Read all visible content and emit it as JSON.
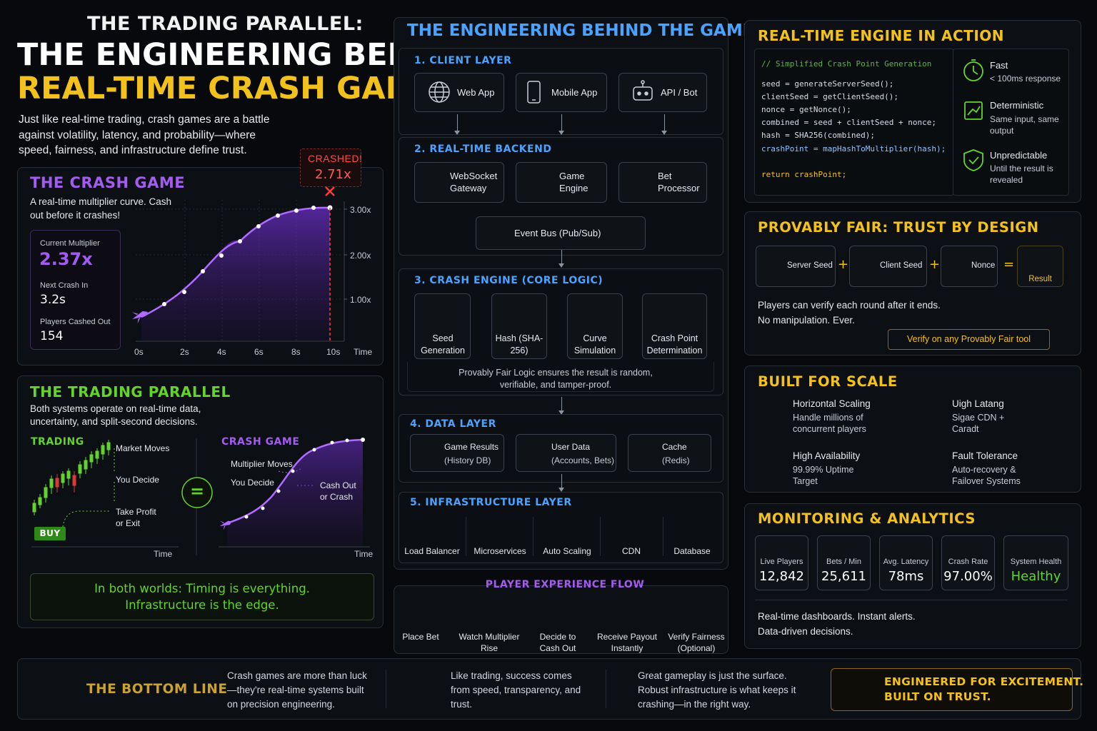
{
  "header": {
    "kicker": "THE TRADING PARALLEL:",
    "title_line1": "THE ENGINEERING BEHIND",
    "title_line2": "REAL-TIME CRASH GAMING",
    "intro": "Just like real-time trading, crash games are a battle against volatility, latency, and probability—where speed, fairness, and infrastructure define trust."
  },
  "crash_game": {
    "title": "THE CRASH GAME",
    "desc": "A real-time multiplier curve. Cash out before it crashes!",
    "crashed_label": "CRASHED!",
    "crashed_value": "2.71x",
    "stats": [
      {
        "label": "Current Multiplier",
        "value": "2.37x"
      },
      {
        "label": "Next Crash In",
        "value": "3.2s"
      },
      {
        "label": "Players Cashed Out",
        "value": "154"
      }
    ],
    "y_ticks": [
      "3.00x",
      "2.00x",
      "1.00x"
    ],
    "x_ticks": [
      "0s",
      "2s",
      "4s",
      "6s",
      "8s",
      "10s"
    ],
    "x_axis": "Time"
  },
  "trading": {
    "title": "THE TRADING PARALLEL",
    "desc": "Both systems operate on real-time data, uncertainty, and split-second decisions.",
    "left_title": "TRADING",
    "left_notes": [
      "Market Moves",
      "You Decide",
      "Take Profit or Exit"
    ],
    "buy": "BUY",
    "equals": "=",
    "right_title": "CRASH GAME",
    "right_notes": [
      "Multiplier Moves",
      "You Decide",
      "Cash Out or Crash"
    ],
    "time_label": "Time",
    "banner_line1": "In both worlds: Timing is everything.",
    "banner_line2": "Infrastructure is the edge."
  },
  "engineering": {
    "title": "THE ENGINEERING BEHIND THE GAME",
    "layer1": {
      "title": "1. CLIENT LAYER",
      "items": [
        "Web App",
        "Mobile App",
        "API / Bot"
      ]
    },
    "layer2": {
      "title": "2. REAL-TIME BACKEND",
      "items": [
        "WebSocket Gateway",
        "Game Engine",
        "Bet Processor"
      ],
      "bus": "Event Bus (Pub/Sub)"
    },
    "layer3": {
      "title": "3. CRASH ENGINE (CORE LOGIC)",
      "steps": [
        "Seed Generation",
        "Hash (SHA-256)",
        "Curve Simulation",
        "Crash Point Determination"
      ],
      "note": "Provably Fair Logic ensures the result is random, verifiable, and tamper-proof."
    },
    "layer4": {
      "title": "4. DATA LAYER",
      "items": [
        {
          "name": "Game Results",
          "sub": "(History DB)"
        },
        {
          "name": "User Data",
          "sub": "(Accounts, Bets)"
        },
        {
          "name": "Cache",
          "sub": "(Redis)"
        }
      ]
    },
    "layer5": {
      "title": "5. INFRASTRUCTURE LAYER",
      "items": [
        "Load Balancer",
        "Microservices",
        "Auto Scaling",
        "CDN",
        "Database"
      ]
    },
    "flow": {
      "title": "PLAYER EXPERIENCE FLOW",
      "steps": [
        "Place Bet",
        "Watch Multiplier Rise",
        "Decide to Cash Out",
        "Receive Payout Instantly",
        "Verify Fairness (Optional)"
      ]
    }
  },
  "engine": {
    "title": "REAL-TIME ENGINE IN ACTION",
    "code": [
      "// Simplified Crash Point Generation",
      "",
      "seed = generateServerSeed();",
      "clientSeed = getClientSeed();",
      "nonce = getNonce();",
      "combined = seed + clientSeed + nonce;",
      "hash = SHA256(combined);",
      "crashPoint = mapHashToMultiplier(hash);",
      "",
      "return crashPoint;"
    ],
    "features": [
      {
        "title": "Fast",
        "sub": "< 100ms response"
      },
      {
        "title": "Deterministic",
        "sub": "Same input, same output"
      },
      {
        "title": "Unpredictable",
        "sub": "Until the result is revealed"
      }
    ]
  },
  "fair": {
    "title": "PROVABLY FAIR: TRUST BY DESIGN",
    "items": [
      "Server Seed",
      "Client Seed",
      "Nonce",
      "Result"
    ],
    "ops": [
      "+",
      "+",
      "="
    ],
    "line1": "Players can verify each round after it ends.",
    "line2": "No manipulation. Ever.",
    "button": "Verify on any Provably Fair tool"
  },
  "scale": {
    "title": "BUILT FOR SCALE",
    "items": [
      {
        "title": "Horizontal Scaling",
        "sub": "Handle millions of concurrent players"
      },
      {
        "title": "Uigh Latang",
        "sub": "Sigae CDN + Caradt"
      },
      {
        "title": "High Availability",
        "sub": "99.99% Uptime Target"
      },
      {
        "title": "Fault Tolerance",
        "sub": "Auto-recovery & Failover Systems"
      }
    ]
  },
  "monitoring": {
    "title": "MONITORING & ANALYTICS",
    "metrics": [
      {
        "label": "Live Players",
        "value": "12,842"
      },
      {
        "label": "Bets / Min",
        "value": "25,611"
      },
      {
        "label": "Avg. Latency",
        "value": "78ms"
      },
      {
        "label": "Crash Rate",
        "value": "97.00%"
      },
      {
        "label": "System Health",
        "value": "Healthy"
      }
    ],
    "line1": "Real-time dashboards. Instant alerts.",
    "line2": "Data-driven decisions."
  },
  "bottom": {
    "title": "THE BOTTOM LINE",
    "col1": "Crash games are more than luck—they're real-time systems built on precision engineering.",
    "col2": "Like trading, success comes from speed, transparency, and trust.",
    "col3": "Great gameplay is just the surface. Robust infrastructure is what keeps it crashing—in the right way.",
    "cta_line1": "ENGINEERED FOR EXCITEMENT.",
    "cta_line2": "BUILT ON TRUST."
  },
  "colors": {
    "yellow": "#f3c11b",
    "purple": "#a45cf0",
    "green": "#63d42c",
    "blue": "#4aa3ff",
    "red": "#ff3b3b"
  }
}
